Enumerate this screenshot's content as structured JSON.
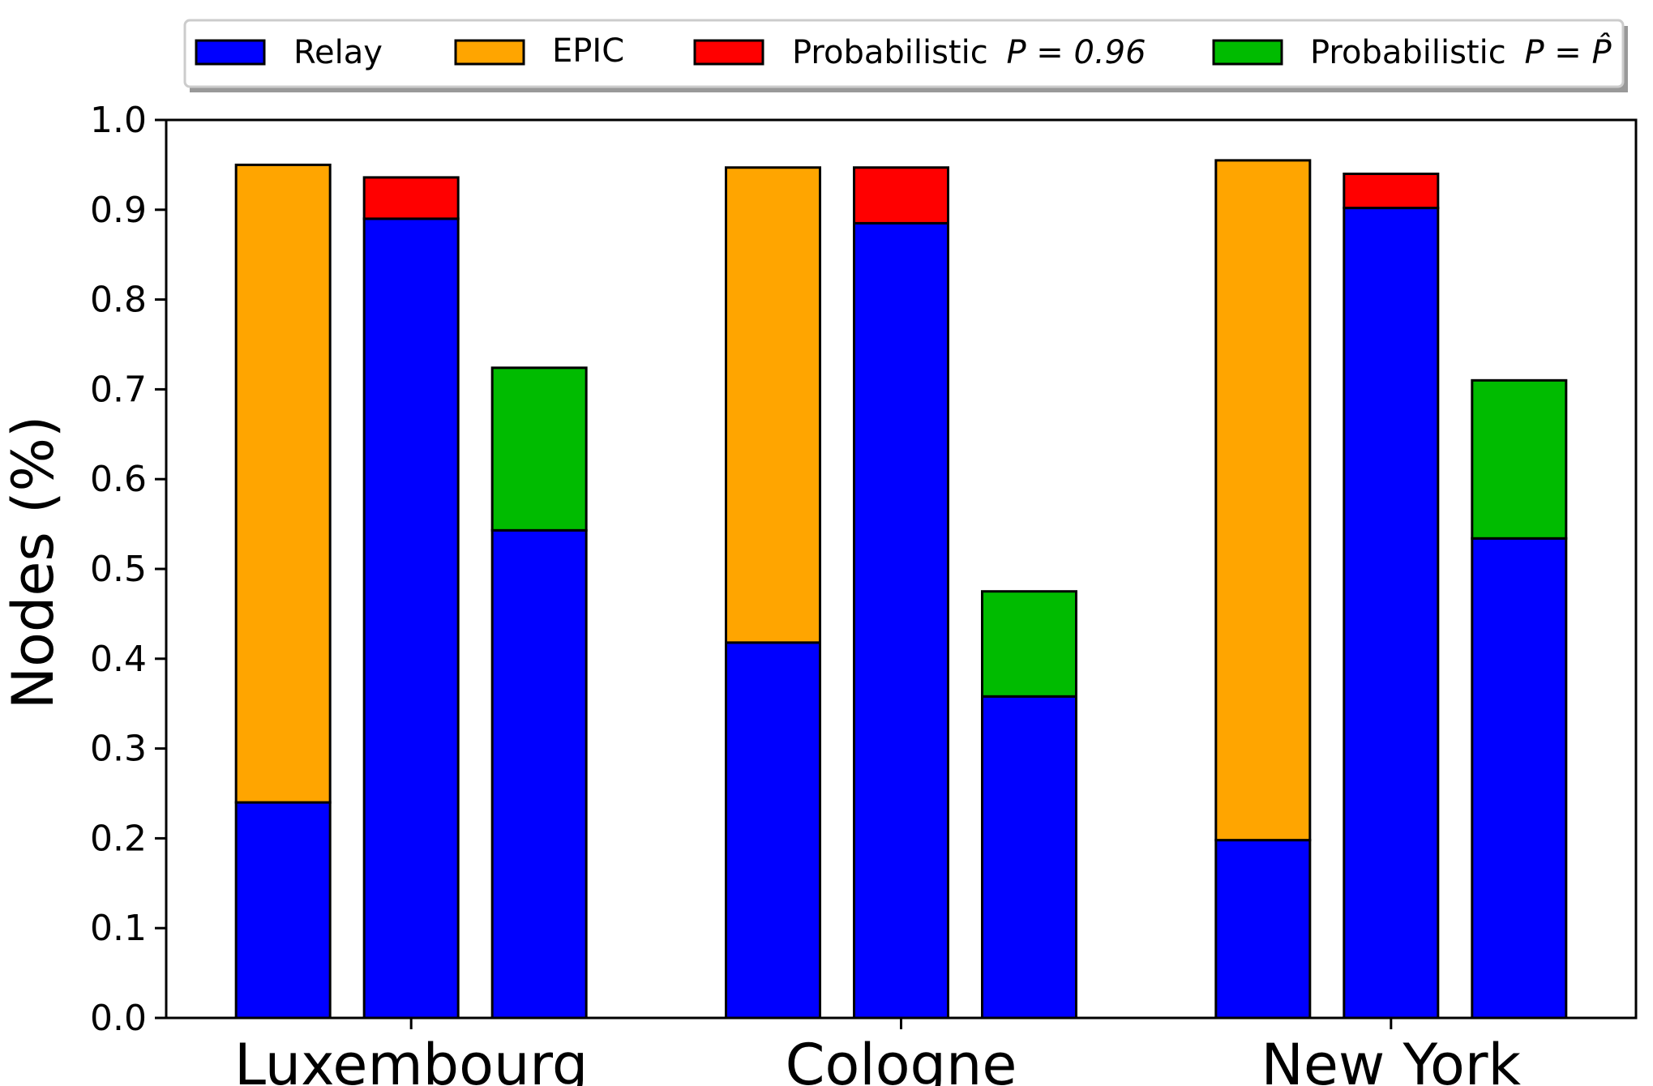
{
  "chart_data": {
    "type": "bar",
    "stacked": true,
    "categories": [
      "Luxembourg",
      "Cologne",
      "New York"
    ],
    "ylabel": "Nodes (%)",
    "ylim": [
      0,
      1.0
    ],
    "yticks": [
      "0.0",
      "0.1",
      "0.2",
      "0.3",
      "0.4",
      "0.5",
      "0.6",
      "0.7",
      "0.8",
      "0.9",
      "1.0"
    ],
    "grid": false,
    "legend_position": "top-center",
    "legend": [
      {
        "key": "relay",
        "label": "Relay",
        "color": "#0000ff"
      },
      {
        "key": "epic",
        "label": "EPIC",
        "color": "#ffa500"
      },
      {
        "key": "prob096",
        "label": "Probabilistic",
        "math": "P = 0.96",
        "color": "#ff0000"
      },
      {
        "key": "probhat",
        "label": "Probabilistic",
        "math": "P = P̂",
        "color": "#00bb00"
      }
    ],
    "groups": [
      {
        "category": "Luxembourg",
        "bars": [
          {
            "name": "EPIC",
            "base": 0.24,
            "top": 0.95,
            "base_series": "relay",
            "top_series": "epic"
          },
          {
            "name": "Probabilistic P = 0.96",
            "base": 0.89,
            "top": 0.936,
            "base_series": "relay",
            "top_series": "prob096"
          },
          {
            "name": "Probabilistic P = P̂",
            "base": 0.543,
            "top": 0.724,
            "base_series": "relay",
            "top_series": "probhat"
          }
        ]
      },
      {
        "category": "Cologne",
        "bars": [
          {
            "name": "EPIC",
            "base": 0.418,
            "top": 0.947,
            "base_series": "relay",
            "top_series": "epic"
          },
          {
            "name": "Probabilistic P = 0.96",
            "base": 0.885,
            "top": 0.947,
            "base_series": "relay",
            "top_series": "prob096"
          },
          {
            "name": "Probabilistic P = P̂",
            "base": 0.358,
            "top": 0.475,
            "base_series": "relay",
            "top_series": "probhat"
          }
        ]
      },
      {
        "category": "New York",
        "bars": [
          {
            "name": "EPIC",
            "base": 0.198,
            "top": 0.955,
            "base_series": "relay",
            "top_series": "epic"
          },
          {
            "name": "Probabilistic P = 0.96",
            "base": 0.902,
            "top": 0.94,
            "base_series": "relay",
            "top_series": "prob096"
          },
          {
            "name": "Probabilistic P = P̂",
            "base": 0.534,
            "top": 0.71,
            "base_series": "relay",
            "top_series": "probhat"
          }
        ]
      }
    ]
  }
}
